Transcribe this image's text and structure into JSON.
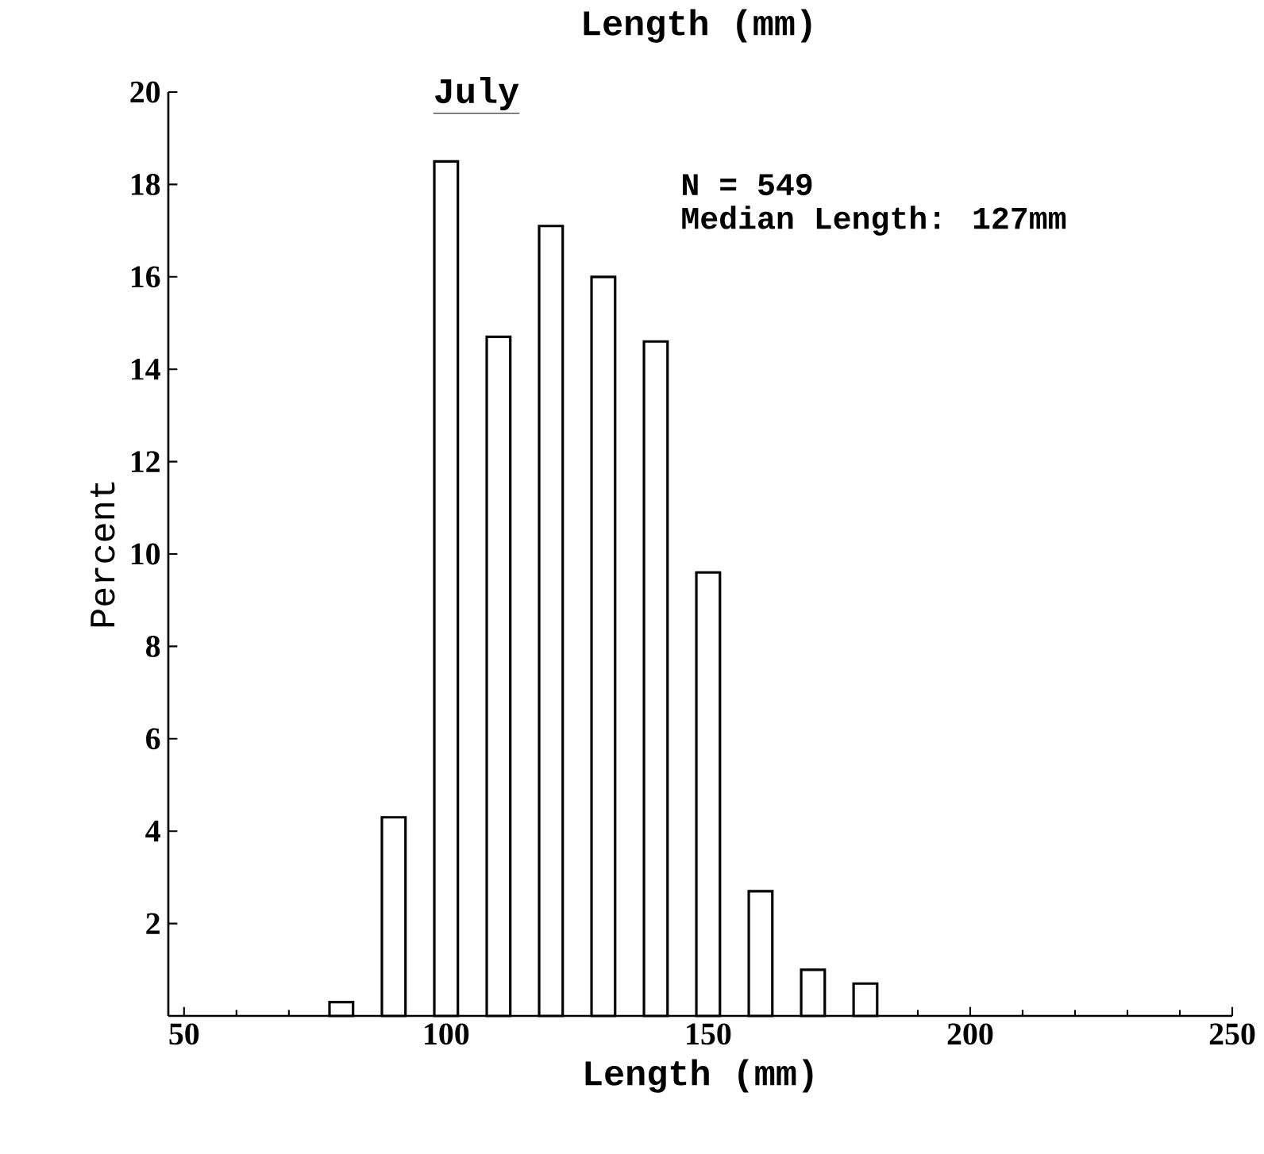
{
  "chart_data": {
    "type": "bar",
    "title": "Length (mm)",
    "subtitle": "July",
    "xlabel": "Length (mm)",
    "ylabel": "Percent",
    "annotations": [
      "N = 549",
      "Median Length: 127mm"
    ],
    "x": [
      80,
      90,
      100,
      110,
      120,
      130,
      140,
      150,
      160,
      170,
      180
    ],
    "values": [
      0.3,
      4.3,
      18.5,
      14.7,
      17.1,
      16.0,
      14.6,
      9.6,
      2.7,
      1.0,
      0.7
    ],
    "color": "#000000",
    "xlim": [
      47,
      250
    ],
    "xticks": [
      50,
      100,
      150,
      200,
      250
    ],
    "ylim": [
      0,
      20
    ],
    "yticks": [
      2,
      4,
      6,
      8,
      10,
      12,
      14,
      16,
      18,
      20
    ]
  }
}
